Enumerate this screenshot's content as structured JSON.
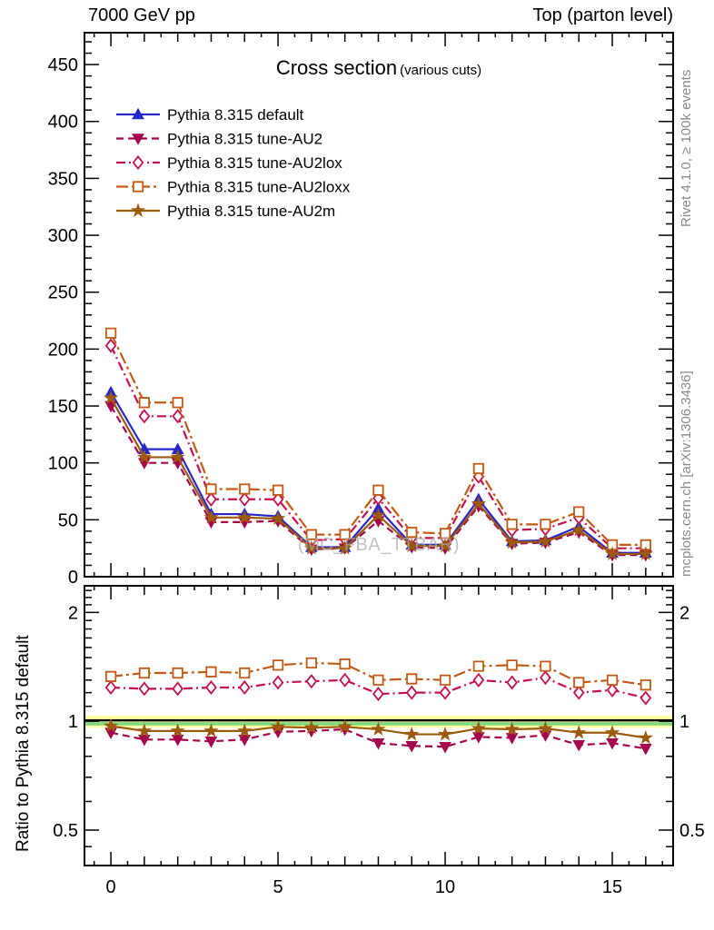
{
  "header": {
    "left": "7000 GeV pp",
    "right": "Top (parton level)"
  },
  "side_notes": {
    "top": "Rivet 4.1.0, ≥ 100k events",
    "bottom": "mcplots.cern.ch [arXiv:1306.3436]"
  },
  "watermark": "(MC_FBA_TTBAR)",
  "chart_data": {
    "type": "line",
    "title": "Cross section",
    "subtitle": "(various cuts)",
    "xlabel": "",
    "x": [
      0,
      1,
      2,
      3,
      4,
      5,
      6,
      7,
      8,
      9,
      10,
      11,
      12,
      13,
      14,
      15,
      16
    ],
    "xlim": [
      -0.79,
      16.82
    ],
    "x_major_ticks": [
      0,
      5,
      10,
      15
    ],
    "grid": false,
    "legend_position": "top-left",
    "main_panel": {
      "ylabel": "",
      "ylim": [
        0,
        478
      ],
      "y_major_ticks": [
        0,
        50,
        100,
        150,
        200,
        250,
        300,
        350,
        400,
        450
      ],
      "y_minor_step": 10
    },
    "ratio_panel": {
      "ylabel": "Ratio to Pythia 8.315 default",
      "scale": "log",
      "ylim": [
        0.399,
        2.37
      ],
      "y_major_ticks": [
        0.5,
        1,
        2
      ],
      "y_minor_ticks": [
        0.45,
        0.6,
        0.7,
        0.8,
        0.9,
        1.1,
        1.2,
        1.3,
        1.4,
        1.5,
        1.6,
        1.7,
        1.8,
        1.9,
        2.1,
        2.2,
        2.3
      ],
      "reference": 1,
      "band_outer_color": "#ffffa0",
      "band_inner_color": "#7fd87f",
      "reference_line_color": "#000000"
    },
    "series": [
      {
        "name": "Pythia 8.315 default",
        "color": "#2626c9",
        "marker": "triangle-up",
        "marker_filled": true,
        "line_style": "solid",
        "is_reference": true,
        "values": [
          162,
          112,
          112,
          55,
          55,
          53,
          26,
          26,
          60,
          28,
          28,
          68,
          31,
          32,
          44,
          21,
          21
        ]
      },
      {
        "name": "Pythia 8.315 tune-AU2",
        "color": "#a5054d",
        "marker": "triangle-down",
        "marker_filled": true,
        "line_style": "dashed",
        "values": [
          150,
          100,
          100,
          48,
          48,
          49,
          24,
          25,
          49,
          26,
          25,
          62,
          29,
          30,
          39,
          19,
          19
        ],
        "ratio": [
          0.93,
          0.89,
          0.89,
          0.88,
          0.89,
          0.935,
          0.94,
          0.95,
          0.87,
          0.855,
          0.85,
          0.905,
          0.9,
          0.915,
          0.86,
          0.87,
          0.84
        ]
      },
      {
        "name": "Pythia 8.315 tune-AU2lox",
        "color": "#c4104f",
        "marker": "diamond",
        "marker_filled": false,
        "line_style": "dashdot",
        "values": [
          203,
          141,
          141,
          68,
          68,
          68,
          32,
          33,
          69,
          34,
          34,
          88,
          41,
          42,
          52,
          25,
          25
        ],
        "ratio": [
          1.24,
          1.23,
          1.23,
          1.24,
          1.24,
          1.28,
          1.29,
          1.3,
          1.19,
          1.2,
          1.2,
          1.3,
          1.28,
          1.32,
          1.2,
          1.22,
          1.16
        ]
      },
      {
        "name": "Pythia 8.315 tune-AU2loxx",
        "color": "#c35a13",
        "marker": "square",
        "marker_filled": false,
        "line_style": "dashdot2",
        "values": [
          214,
          153,
          153,
          77,
          77,
          76,
          37,
          37,
          76,
          39,
          38,
          95,
          46,
          46,
          57,
          28,
          28
        ],
        "ratio": [
          1.33,
          1.36,
          1.36,
          1.37,
          1.36,
          1.43,
          1.45,
          1.44,
          1.3,
          1.31,
          1.3,
          1.42,
          1.43,
          1.42,
          1.28,
          1.3,
          1.26
        ]
      },
      {
        "name": "Pythia 8.315 tune-AU2m",
        "color": "#9c5a0c",
        "marker": "star",
        "marker_filled": true,
        "line_style": "solid",
        "values": [
          157,
          105,
          105,
          52,
          52,
          51,
          25,
          25,
          54,
          27,
          27,
          64,
          30,
          31,
          41,
          20,
          20
        ],
        "ratio": [
          0.97,
          0.94,
          0.94,
          0.94,
          0.94,
          0.965,
          0.96,
          0.965,
          0.95,
          0.92,
          0.92,
          0.955,
          0.95,
          0.955,
          0.93,
          0.93,
          0.9
        ]
      }
    ]
  }
}
